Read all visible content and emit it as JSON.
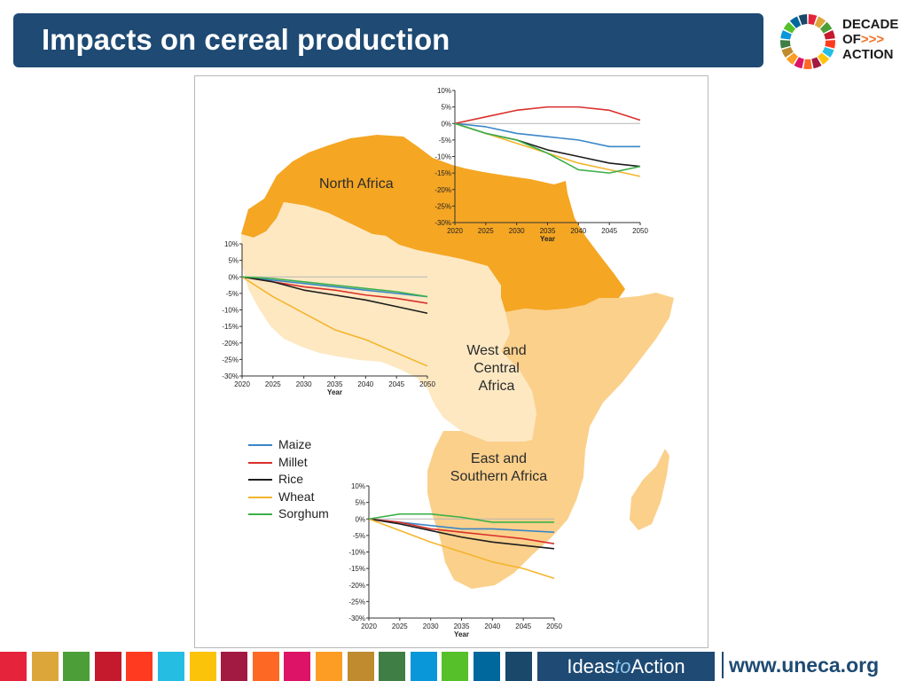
{
  "slide": {
    "title": "Impacts on cereal production"
  },
  "logo": {
    "line1": "DECADE",
    "line2": "OF",
    "arrows": ">>>",
    "line3": "ACTION"
  },
  "map": {
    "regions": {
      "north_africa": "North Africa",
      "west_central": [
        "West and",
        "Central",
        "Africa"
      ],
      "east_southern": [
        "East and",
        "Southern Africa"
      ]
    },
    "colors": {
      "north_africa": "#f5a623",
      "west_central": "#fde8c2",
      "east_southern": "#fbd08b",
      "sahel": "#fbe2b6"
    }
  },
  "legend": [
    {
      "name": "Maize",
      "color": "#3a86c8"
    },
    {
      "name": "Millet",
      "color": "#d9302b"
    },
    {
      "name": "Rice",
      "color": "#1e1e1e"
    },
    {
      "name": "Wheat",
      "color": "#f4b52c"
    },
    {
      "name": "Sorghum",
      "color": "#3cb04a"
    }
  ],
  "chart_data": [
    {
      "type": "line",
      "region": "North Africa",
      "xlabel": "Year",
      "ylabel": "",
      "x": [
        2020,
        2025,
        2030,
        2035,
        2040,
        2045,
        2050
      ],
      "xlim": [
        2020,
        2050
      ],
      "ylim": [
        -30,
        10
      ],
      "yticks": [
        "10%",
        "5%",
        "0%",
        "-5%",
        "-10%",
        "-15%",
        "-20%",
        "-25%",
        "-30%"
      ],
      "xticks": [
        "2020",
        "2025",
        "2030",
        "2035",
        "2040",
        "2045",
        "2050"
      ],
      "series": [
        {
          "name": "Maize",
          "values": [
            0,
            -1,
            -3,
            -4,
            -5,
            -7,
            -7
          ]
        },
        {
          "name": "Millet",
          "values": [
            0,
            2,
            4,
            5,
            5,
            4,
            1
          ]
        },
        {
          "name": "Rice",
          "values": [
            0,
            -3,
            -5,
            -8,
            -10,
            -12,
            -13
          ]
        },
        {
          "name": "Wheat",
          "values": [
            0,
            -3,
            -6,
            -9,
            -12,
            -14,
            -16
          ]
        },
        {
          "name": "Sorghum",
          "values": [
            0,
            -3,
            -5,
            -9,
            -14,
            -15,
            -13
          ]
        }
      ]
    },
    {
      "type": "line",
      "region": "West and Central Africa",
      "xlabel": "Year",
      "ylabel": "",
      "x": [
        2020,
        2025,
        2030,
        2035,
        2040,
        2045,
        2050
      ],
      "xlim": [
        2020,
        2050
      ],
      "ylim": [
        -30,
        10
      ],
      "yticks": [
        "10%",
        "5%",
        "0%",
        "-5%",
        "-10%",
        "-15%",
        "-20%",
        "-25%",
        "-30%"
      ],
      "xticks": [
        "2020",
        "2025",
        "2030",
        "2035",
        "2040",
        "2045",
        "2050"
      ],
      "series": [
        {
          "name": "Maize",
          "values": [
            0,
            -1,
            -2,
            -3,
            -4,
            -5,
            -6
          ]
        },
        {
          "name": "Millet",
          "values": [
            0,
            -1.5,
            -3,
            -4,
            -5.5,
            -6.5,
            -8
          ]
        },
        {
          "name": "Rice",
          "values": [
            0,
            -1.5,
            -4,
            -5.5,
            -7,
            -9,
            -11
          ]
        },
        {
          "name": "Wheat",
          "values": [
            0,
            -6,
            -11,
            -16,
            -19,
            -23,
            -27
          ]
        },
        {
          "name": "Sorghum",
          "values": [
            0,
            -0.5,
            -1.5,
            -2.5,
            -3.5,
            -4.5,
            -6
          ]
        }
      ]
    },
    {
      "type": "line",
      "region": "East and Southern Africa",
      "xlabel": "Year",
      "ylabel": "",
      "x": [
        2020,
        2025,
        2030,
        2035,
        2040,
        2045,
        2050
      ],
      "xlim": [
        2020,
        2050
      ],
      "ylim": [
        -30,
        10
      ],
      "yticks": [
        "10%",
        "5%",
        "0%",
        "-5%",
        "-10%",
        "-15%",
        "-20%",
        "-25%",
        "-30%"
      ],
      "xticks": [
        "2020",
        "2025",
        "2030",
        "2035",
        "2040",
        "2045",
        "2050"
      ],
      "series": [
        {
          "name": "Maize",
          "values": [
            0,
            -1,
            -2,
            -3,
            -3,
            -3.5,
            -4
          ]
        },
        {
          "name": "Millet",
          "values": [
            0,
            -1,
            -3,
            -4,
            -5,
            -6,
            -7.5
          ]
        },
        {
          "name": "Rice",
          "values": [
            0,
            -1.5,
            -3.5,
            -5.5,
            -7,
            -8,
            -9
          ]
        },
        {
          "name": "Wheat",
          "values": [
            0,
            -3.5,
            -7,
            -10,
            -13,
            -15,
            -18
          ]
        },
        {
          "name": "Sorghum",
          "values": [
            0,
            1.5,
            1.5,
            0.5,
            -1,
            -1,
            -1
          ]
        }
      ]
    }
  ],
  "footer": {
    "brand_ideas": "Ideas",
    "brand_to": "to",
    "brand_action": "Action",
    "url": "www.uneca.org",
    "colors": [
      "#e5243b",
      "#dda63a",
      "#4c9f38",
      "#c5192d",
      "#ff3a21",
      "#26bde2",
      "#fcc30b",
      "#a21942",
      "#fd6925",
      "#dd1367",
      "#fd9d24",
      "#bf8b2e",
      "#3f7e44",
      "#0a97d9",
      "#56c02b",
      "#00689d",
      "#19486a"
    ]
  }
}
